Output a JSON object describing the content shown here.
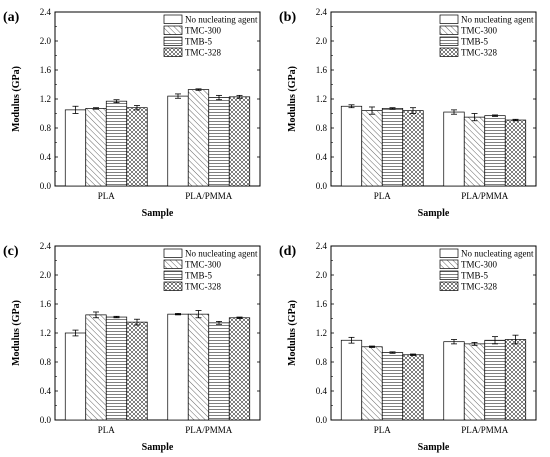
{
  "chart_data": [
    {
      "type": "bar",
      "panel_label": "(a)",
      "xlabel": "Sample",
      "ylabel": "Modulus (GPa)",
      "ylim": [
        0,
        2.4
      ],
      "yticks": [
        "0.0",
        "0.4",
        "0.8",
        "1.2",
        "1.6",
        "2.0",
        "2.4"
      ],
      "categories": [
        "PLA",
        "PLA/PMMA"
      ],
      "series": [
        {
          "name": "No nucleating agent",
          "values": [
            1.05,
            1.24
          ],
          "errors": [
            0.05,
            0.03
          ]
        },
        {
          "name": "TMC-300",
          "values": [
            1.07,
            1.33
          ],
          "errors": [
            0.01,
            0.01
          ]
        },
        {
          "name": "TMB-5",
          "values": [
            1.17,
            1.22
          ],
          "errors": [
            0.02,
            0.03
          ]
        },
        {
          "name": "TMC-328",
          "values": [
            1.08,
            1.23
          ],
          "errors": [
            0.03,
            0.02
          ]
        }
      ],
      "legend_position": "top-right"
    },
    {
      "type": "bar",
      "panel_label": "(b)",
      "xlabel": "Sample",
      "ylabel": "Modulus (GPa)",
      "ylim": [
        0,
        2.4
      ],
      "yticks": [
        "0.0",
        "0.4",
        "0.8",
        "1.2",
        "1.6",
        "2.0",
        "2.4"
      ],
      "categories": [
        "PLA",
        "PLA/PMMA"
      ],
      "series": [
        {
          "name": "No nucleating agent",
          "values": [
            1.1,
            1.02
          ],
          "errors": [
            0.02,
            0.03
          ]
        },
        {
          "name": "TMC-300",
          "values": [
            1.04,
            0.95
          ],
          "errors": [
            0.05,
            0.05
          ]
        },
        {
          "name": "TMB-5",
          "values": [
            1.07,
            0.97
          ],
          "errors": [
            0.01,
            0.01
          ]
        },
        {
          "name": "TMC-328",
          "values": [
            1.04,
            0.91
          ],
          "errors": [
            0.04,
            0.01
          ]
        }
      ],
      "legend_position": "top-right"
    },
    {
      "type": "bar",
      "panel_label": "(c)",
      "xlabel": "Sample",
      "ylabel": "Modulus (GPa)",
      "ylim": [
        0,
        2.4
      ],
      "yticks": [
        "0.0",
        "0.4",
        "0.8",
        "1.2",
        "1.6",
        "2.0",
        "2.4"
      ],
      "categories": [
        "PLA",
        "PLA/PMMA"
      ],
      "series": [
        {
          "name": "No nucleating agent",
          "values": [
            1.2,
            1.46
          ],
          "errors": [
            0.04,
            0.01
          ]
        },
        {
          "name": "TMC-300",
          "values": [
            1.45,
            1.46
          ],
          "errors": [
            0.04,
            0.05
          ]
        },
        {
          "name": "TMB-5",
          "values": [
            1.42,
            1.34
          ],
          "errors": [
            0.01,
            0.02
          ]
        },
        {
          "name": "TMC-328",
          "values": [
            1.35,
            1.41
          ],
          "errors": [
            0.04,
            0.01
          ]
        }
      ],
      "legend_position": "top-right"
    },
    {
      "type": "bar",
      "panel_label": "(d)",
      "xlabel": "Sample",
      "ylabel": "Modulus (GPa)",
      "ylim": [
        0,
        2.4
      ],
      "yticks": [
        "0.0",
        "0.4",
        "0.8",
        "1.2",
        "1.6",
        "2.0",
        "2.4"
      ],
      "categories": [
        "PLA",
        "PLA/PMMA"
      ],
      "series": [
        {
          "name": "No nucleating agent",
          "values": [
            1.1,
            1.08
          ],
          "errors": [
            0.04,
            0.03
          ]
        },
        {
          "name": "TMC-300",
          "values": [
            1.01,
            1.05
          ],
          "errors": [
            0.01,
            0.02
          ]
        },
        {
          "name": "TMB-5",
          "values": [
            0.93,
            1.1
          ],
          "errors": [
            0.01,
            0.05
          ]
        },
        {
          "name": "TMC-328",
          "values": [
            0.9,
            1.11
          ],
          "errors": [
            0.01,
            0.06
          ]
        }
      ],
      "legend_position": "top-right"
    }
  ]
}
